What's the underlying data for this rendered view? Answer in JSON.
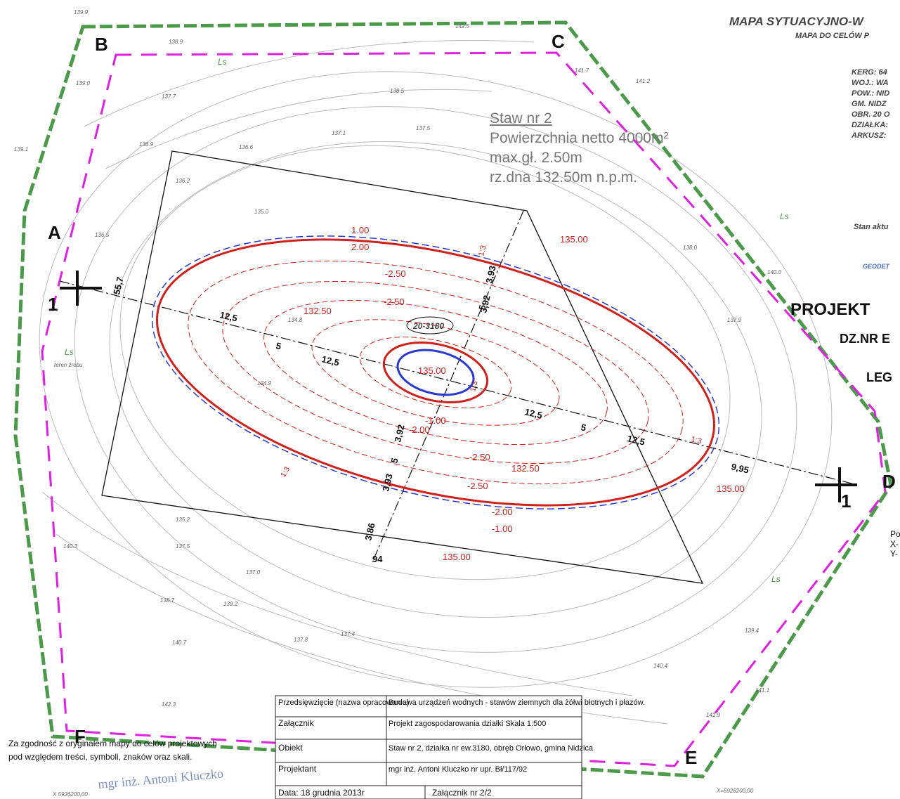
{
  "header": {
    "title": "MAPA SYTUACYJNO-W",
    "subtitle": "MAPA DO CELÓW P"
  },
  "info": [
    "KERG: 64",
    "WOJ.: WA",
    "POW.: NID",
    "GM. NIDZ",
    "OBR. 20 O",
    "DZIAŁKA:",
    "ARKUSZ:"
  ],
  "side": {
    "stan": "Stan aktu",
    "geodet": "GEODET",
    "projekt": "PROJEKT",
    "dz": "DZ.NR E",
    "leg": "LEG",
    "po": "Po",
    "x": "X-",
    "y": "Y-"
  },
  "pond": {
    "name": "Staw nr 2",
    "area": "Powierzchnia netto 4000m²",
    "depth": "max.gł. 2.50m",
    "bottom": "rz.dna 132.50m n.p.m.",
    "parcel": "20-3180"
  },
  "points": [
    "A",
    "B",
    "C",
    "D",
    "E",
    "F",
    "1",
    "1"
  ],
  "land": [
    "Ls",
    "Ls",
    "Ls",
    "Ls",
    "teren źrebu"
  ],
  "contour_labels": [
    "1.00",
    "2.00",
    "-2.50",
    "-2.50",
    "-1.00",
    "-2.00",
    "-2.50",
    "-2.50",
    "-2.00",
    "-1.00"
  ],
  "spot_heights": [
    "135.00",
    "132.50",
    "135.00",
    "132.50",
    "135.00",
    "135.00"
  ],
  "dimensions": [
    "12,5",
    "5",
    "12,5",
    "12,5",
    "5",
    "12,5",
    "9,95",
    "55,7",
    "3,92",
    "5",
    "3,93",
    "3,92",
    "5",
    "3,93",
    "3,86",
    "94",
    "1:3",
    "1:3",
    "1:3",
    "1:3"
  ],
  "elevations": [
    "139.9",
    "139.0",
    "138.9",
    "139.1",
    "137.7",
    "138.5",
    "137.5",
    "136.9",
    "136.6",
    "136.2",
    "135.0",
    "136.5",
    "137.9",
    "141.2",
    "140.0",
    "138.0",
    "137.1",
    "140.3",
    "137.5",
    "137.0",
    "138.7",
    "139.2",
    "137.8",
    "137.4",
    "140.7",
    "142.3",
    "141.9",
    "140.4",
    "141.1",
    "139.4",
    "142.5",
    "141.7",
    "135.2",
    "134.9",
    "134.8"
  ],
  "table": {
    "rows": [
      [
        "Przedsięwzięcie (nazwa opracowania)",
        "Budowa urządzeń wodnych - stawów ziemnych dla żółwi błotnych i płazów."
      ],
      [
        "Załącznik",
        "Projekt zagospodarowania działki Skala 1:500"
      ],
      [
        "Obiekt",
        "Staw nr 2, działka nr ew.3180, obręb Orłowo, gmina Nidzica"
      ],
      [
        "Projektant",
        "mgr inż. Antoni Kluczko nr upr. Bł/117/92"
      ],
      [
        "Data: 18 grudnia 2013r",
        "Załącznik nr 2/2"
      ]
    ]
  },
  "note": [
    "Za zgodność z oryginałem mapy do celów projektowych",
    "pod względem treści, symboli, znaków oraz skali."
  ],
  "stamp": "mgr inż. Antoni Kluczko",
  "coords": [
    "X 5926200,00",
    "X=5926200,00"
  ]
}
